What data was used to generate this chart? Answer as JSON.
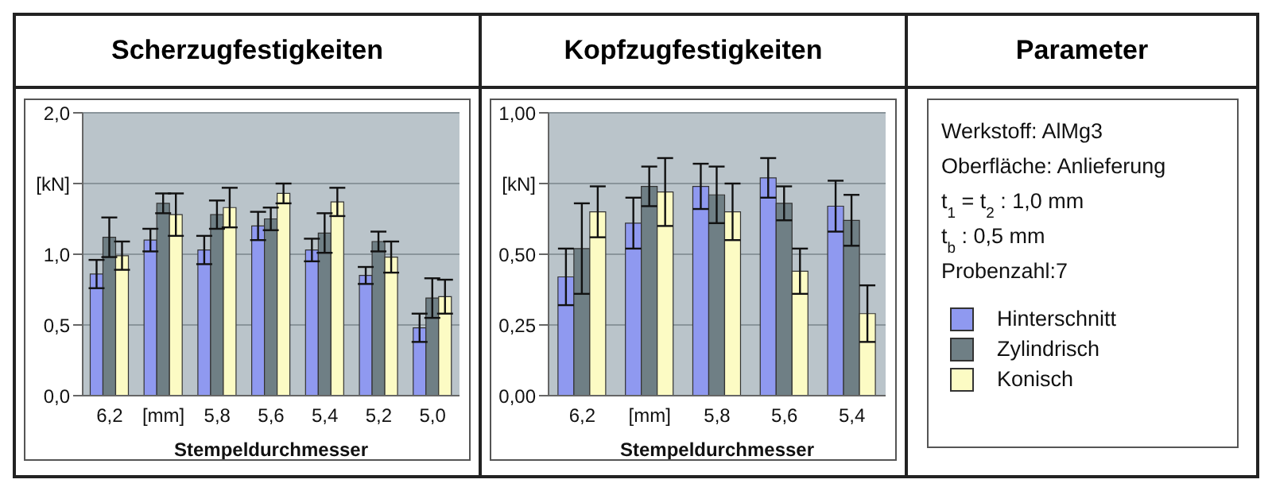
{
  "chart_data": [
    {
      "type": "bar",
      "title": "Scherzugfestigkeiten",
      "xlabel": "Stempeldurchmesser",
      "categories": [
        "6,2",
        "[mm]",
        "5,8",
        "5,6",
        "5,4",
        "5,2",
        "5,0"
      ],
      "series": [
        {
          "color": "#8f99f0",
          "values": [
            0.86,
            1.1,
            1.03,
            1.2,
            1.03,
            0.85,
            0.48
          ],
          "errors": [
            0.1,
            0.08,
            0.1,
            0.1,
            0.08,
            0.06,
            0.1
          ]
        },
        {
          "color": "#6f7f85",
          "values": [
            1.12,
            1.36,
            1.28,
            1.25,
            1.15,
            1.09,
            0.69
          ],
          "errors": [
            0.14,
            0.07,
            0.1,
            0.08,
            0.14,
            0.07,
            0.14
          ]
        },
        {
          "color": "#fcfbc4",
          "values": [
            0.99,
            1.28,
            1.33,
            1.43,
            1.37,
            0.98,
            0.7
          ],
          "errors": [
            0.1,
            0.15,
            0.14,
            0.07,
            0.1,
            0.11,
            0.12
          ]
        }
      ],
      "ylim": [
        0,
        2
      ],
      "yticks": [
        {
          "value": 0,
          "label": "0,0"
        },
        {
          "value": 0.5,
          "label": "0,5"
        },
        {
          "value": 1,
          "label": "1,0"
        },
        {
          "value": 1.5,
          "label": "[kN]"
        },
        {
          "value": 2,
          "label": "2,0"
        }
      ],
      "grid": "y"
    },
    {
      "type": "bar",
      "title": "Kopfzugfestigkeiten",
      "xlabel": "Stempeldurchmesser",
      "categories": [
        "6,2",
        "[mm]",
        "5,8",
        "5,6",
        "5,4"
      ],
      "series": [
        {
          "name": "Hinterschnitt",
          "color": "#8f99f0",
          "values": [
            0.42,
            0.61,
            0.74,
            0.77,
            0.67
          ],
          "errors": [
            0.1,
            0.09,
            0.08,
            0.07,
            0.09
          ]
        },
        {
          "name": "Zylindrisch",
          "color": "#6f7f85",
          "values": [
            0.52,
            0.74,
            0.71,
            0.68,
            0.62
          ],
          "errors": [
            0.16,
            0.07,
            0.1,
            0.06,
            0.09
          ]
        },
        {
          "name": "Konisch",
          "color": "#fcfbc4",
          "values": [
            0.65,
            0.72,
            0.65,
            0.44,
            0.29
          ],
          "errors": [
            0.09,
            0.12,
            0.1,
            0.08,
            0.1
          ]
        }
      ],
      "ylim": [
        0,
        1
      ],
      "yticks": [
        {
          "value": 0,
          "label": "0,00"
        },
        {
          "value": 0.25,
          "label": "0,25"
        },
        {
          "value": 0.5,
          "label": "0,50"
        },
        {
          "value": 0.75,
          "label": "[kN]"
        },
        {
          "value": 1,
          "label": "1,00"
        }
      ],
      "grid": "y",
      "legend": "right"
    },
    {
      "type": "other",
      "title": "Parameter",
      "annotations": [
        "Werkstoff:  AlMg3",
        "Oberfläche: Anlieferung",
        "t$_{1}$ = t$_{2}$ :  1,0 mm",
        "t$_{b}$ :  0,5 mm",
        "Probenzahl:7"
      ]
    }
  ]
}
